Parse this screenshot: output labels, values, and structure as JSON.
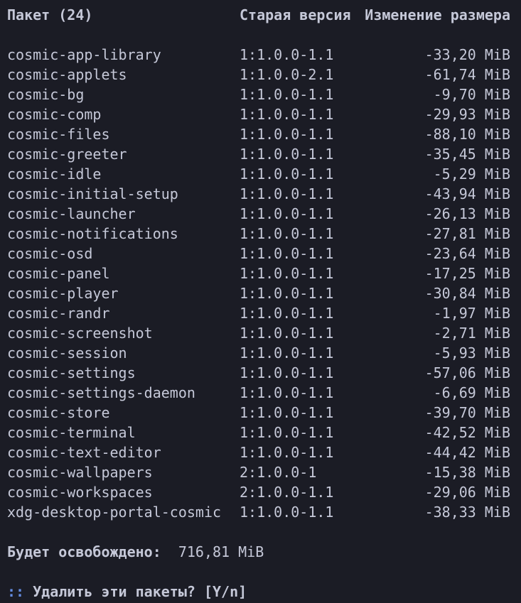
{
  "terminal": {
    "colors": {
      "background": "#1b1c25",
      "foreground": "#c5c8d8",
      "accent_blue": "#648ce1"
    },
    "table": {
      "header": {
        "package": "Пакет (24)",
        "old_version": "Старая версия",
        "size_change": "Изменение размера"
      },
      "rows": [
        {
          "name": "cosmic-app-library",
          "version": "1:1.0.0-1.1",
          "size": "-33,20 MiB"
        },
        {
          "name": "cosmic-applets",
          "version": "1:1.0.0-2.1",
          "size": "-61,74 MiB"
        },
        {
          "name": "cosmic-bg",
          "version": "1:1.0.0-1.1",
          "size": "-9,70 MiB"
        },
        {
          "name": "cosmic-comp",
          "version": "1:1.0.0-1.1",
          "size": "-29,93 MiB"
        },
        {
          "name": "cosmic-files",
          "version": "1:1.0.0-1.1",
          "size": "-88,10 MiB"
        },
        {
          "name": "cosmic-greeter",
          "version": "1:1.0.0-1.1",
          "size": "-35,45 MiB"
        },
        {
          "name": "cosmic-idle",
          "version": "1:1.0.0-1.1",
          "size": "-5,29 MiB"
        },
        {
          "name": "cosmic-initial-setup",
          "version": "1:1.0.0-1.1",
          "size": "-43,94 MiB"
        },
        {
          "name": "cosmic-launcher",
          "version": "1:1.0.0-1.1",
          "size": "-26,13 MiB"
        },
        {
          "name": "cosmic-notifications",
          "version": "1:1.0.0-1.1",
          "size": "-27,81 MiB"
        },
        {
          "name": "cosmic-osd",
          "version": "1:1.0.0-1.1",
          "size": "-23,64 MiB"
        },
        {
          "name": "cosmic-panel",
          "version": "1:1.0.0-1.1",
          "size": "-17,25 MiB"
        },
        {
          "name": "cosmic-player",
          "version": "1:1.0.0-1.1",
          "size": "-30,84 MiB"
        },
        {
          "name": "cosmic-randr",
          "version": "1:1.0.0-1.1",
          "size": "-1,97 MiB"
        },
        {
          "name": "cosmic-screenshot",
          "version": "1:1.0.0-1.1",
          "size": "-2,71 MiB"
        },
        {
          "name": "cosmic-session",
          "version": "1:1.0.0-1.1",
          "size": "-5,93 MiB"
        },
        {
          "name": "cosmic-settings",
          "version": "1:1.0.0-1.1",
          "size": "-57,06 MiB"
        },
        {
          "name": "cosmic-settings-daemon",
          "version": "1:1.0.0-1.1",
          "size": "-6,69 MiB"
        },
        {
          "name": "cosmic-store",
          "version": "1:1.0.0-1.1",
          "size": "-39,70 MiB"
        },
        {
          "name": "cosmic-terminal",
          "version": "1:1.0.0-1.1",
          "size": "-42,52 MiB"
        },
        {
          "name": "cosmic-text-editor",
          "version": "1:1.0.0-1.1",
          "size": "-44,42 MiB"
        },
        {
          "name": "cosmic-wallpapers",
          "version": "2:1.0.0-1",
          "size": "-15,38 MiB"
        },
        {
          "name": "cosmic-workspaces",
          "version": "2:1.0.0-1.1",
          "size": "-29,06 MiB"
        },
        {
          "name": "xdg-desktop-portal-cosmic",
          "version": "1:1.0.0-1.1",
          "size": "-38,33 MiB"
        }
      ]
    },
    "summary": {
      "label": "Будет освобождено:",
      "value": "716,81 MiB"
    },
    "prompt": {
      "marker": "::",
      "question": "Удалить эти пакеты?",
      "options": "[Y/n]"
    }
  }
}
